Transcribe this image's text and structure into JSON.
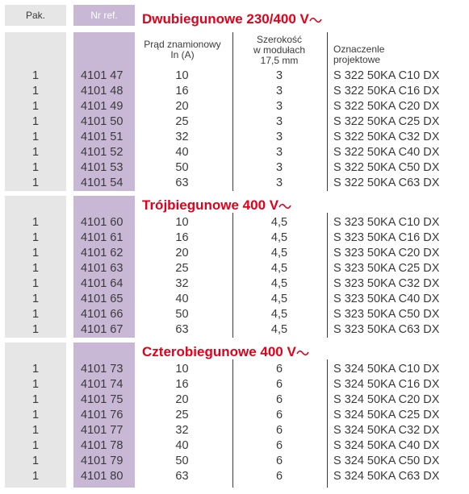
{
  "header": {
    "pak_label": "Pak.",
    "ref_label": "Nr ref."
  },
  "column_headers": {
    "current_line1": "Prąd znamionowy",
    "current_line2": "In (A)",
    "width_line1": "Szerokość",
    "width_line2": "w modułach",
    "width_line3": "17,5 mm",
    "designation_line1": "Oznaczenle",
    "designation_line2": "projektowe"
  },
  "sections": [
    {
      "title": "Dwubiegunowe 230/400 V",
      "rows": [
        {
          "pak": "1",
          "ref": "4101 47",
          "in": "10",
          "width": "3",
          "designation": "S 322 50KA C10 DX"
        },
        {
          "pak": "1",
          "ref": "4101 48",
          "in": "16",
          "width": "3",
          "designation": "S 322 50KA C16 DX"
        },
        {
          "pak": "1",
          "ref": "4101 49",
          "in": "20",
          "width": "3",
          "designation": "S 322 50KA C20 DX"
        },
        {
          "pak": "1",
          "ref": "4101 50",
          "in": "25",
          "width": "3",
          "designation": "S 322 50KA C25 DX"
        },
        {
          "pak": "1",
          "ref": "4101 51",
          "in": "32",
          "width": "3",
          "designation": "S 322 50KA C32 DX"
        },
        {
          "pak": "1",
          "ref": "4101 52",
          "in": "40",
          "width": "3",
          "designation": "S 322 50KA C40 DX"
        },
        {
          "pak": "1",
          "ref": "4101 53",
          "in": "50",
          "width": "3",
          "designation": "S 322 50KA C50 DX"
        },
        {
          "pak": "1",
          "ref": "4101 54",
          "in": "63",
          "width": "3",
          "designation": "S 322 50KA C63 DX"
        }
      ]
    },
    {
      "title": "Trójbiegunowe 400 V",
      "rows": [
        {
          "pak": "1",
          "ref": "4101 60",
          "in": "10",
          "width": "4,5",
          "designation": "S 323 50KA C10 DX"
        },
        {
          "pak": "1",
          "ref": "4101 61",
          "in": "16",
          "width": "4,5",
          "designation": "S 323 50KA C16 DX"
        },
        {
          "pak": "1",
          "ref": "4101 62",
          "in": "20",
          "width": "4,5",
          "designation": "S 323 50KA C20 DX"
        },
        {
          "pak": "1",
          "ref": "4101 63",
          "in": "25",
          "width": "4,5",
          "designation": "S 323 50KA C25 DX"
        },
        {
          "pak": "1",
          "ref": "4101 64",
          "in": "32",
          "width": "4,5",
          "designation": "S 323 50KA C32 DX"
        },
        {
          "pak": "1",
          "ref": "4101 65",
          "in": "40",
          "width": "4,5",
          "designation": "S 323 50KA C40 DX"
        },
        {
          "pak": "1",
          "ref": "4101 66",
          "in": "50",
          "width": "4,5",
          "designation": "S 323 50KA C50 DX"
        },
        {
          "pak": "1",
          "ref": "4101 67",
          "in": "63",
          "width": "4,5",
          "designation": "S 323 50KA C63 DX"
        }
      ]
    },
    {
      "title": "Czterobiegunowe 400 V",
      "rows": [
        {
          "pak": "1",
          "ref": "4101 73",
          "in": "10",
          "width": "6",
          "designation": "S 324 50KA C10 DX"
        },
        {
          "pak": "1",
          "ref": "4101 74",
          "in": "16",
          "width": "6",
          "designation": "S 324 50KA C16 DX"
        },
        {
          "pak": "1",
          "ref": "4101 75",
          "in": "20",
          "width": "6",
          "designation": "S 324 50KA C20 DX"
        },
        {
          "pak": "1",
          "ref": "4101 76",
          "in": "25",
          "width": "6",
          "designation": "S 324 50KA C25 DX"
        },
        {
          "pak": "1",
          "ref": "4101 77",
          "in": "32",
          "width": "6",
          "designation": "S 324 50KA C32 DX"
        },
        {
          "pak": "1",
          "ref": "4101 78",
          "in": "40",
          "width": "6",
          "designation": "S 324 50KA C40 DX"
        },
        {
          "pak": "1",
          "ref": "4101 79",
          "in": "50",
          "width": "6",
          "designation": "S 324 50KA C50 DX"
        },
        {
          "pak": "1",
          "ref": "4101 80",
          "in": "63",
          "width": "6",
          "designation": "S 324 50KA C63 DX"
        }
      ]
    }
  ],
  "colors": {
    "title_red": "#e0001b",
    "ref_purple": "#c9b7d6",
    "pak_gray": "#e6e6e6",
    "text": "#3a3a3a"
  },
  "icons": {
    "ac_symbol": "ac-tilde-icon"
  }
}
